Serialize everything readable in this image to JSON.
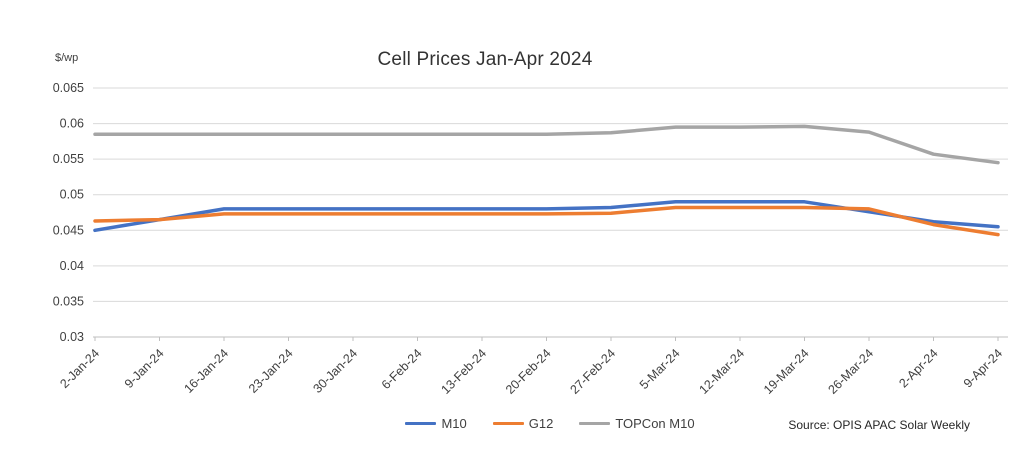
{
  "chart_data": {
    "type": "line",
    "title": "Cell Prices Jan-Apr 2024",
    "ylabel": "$/wp",
    "xlabel": "",
    "ylim": [
      0.03,
      0.065
    ],
    "y_ticks": [
      0.065,
      0.06,
      0.055,
      0.05,
      0.045,
      0.04,
      0.035,
      0.03
    ],
    "y_tick_labels": [
      "0.065",
      "0.06",
      "0.055",
      "0.05",
      "0.045",
      "0.04",
      "0.035",
      "0.03"
    ],
    "grid": "horizontal",
    "legend_position": "bottom-center",
    "x_label_rotation": -45,
    "categories": [
      "2-Jan-24",
      "9-Jan-24",
      "16-Jan-24",
      "23-Jan-24",
      "30-Jan-24",
      "6-Feb-24",
      "13-Feb-24",
      "20-Feb-24",
      "27-Feb-24",
      "5-Mar-24",
      "12-Mar-24",
      "19-Mar-24",
      "26-Mar-24",
      "2-Apr-24",
      "9-Apr-24"
    ],
    "series": [
      {
        "name": "M10",
        "color": "#4472C4",
        "values": [
          0.045,
          0.0465,
          0.048,
          0.048,
          0.048,
          0.048,
          0.048,
          0.048,
          0.0482,
          0.049,
          0.049,
          0.049,
          0.0476,
          0.0462,
          0.0455
        ]
      },
      {
        "name": "G12",
        "color": "#ED7D31",
        "values": [
          0.0463,
          0.0465,
          0.0473,
          0.0473,
          0.0473,
          0.0473,
          0.0473,
          0.0473,
          0.0474,
          0.0482,
          0.0482,
          0.0482,
          0.048,
          0.0458,
          0.0444
        ]
      },
      {
        "name": "TOPCon M10",
        "color": "#A5A5A5",
        "values": [
          0.0585,
          0.0585,
          0.0585,
          0.0585,
          0.0585,
          0.0585,
          0.0585,
          0.0585,
          0.0587,
          0.0595,
          0.0595,
          0.0596,
          0.0588,
          0.0557,
          0.0545
        ]
      }
    ],
    "source": "Source: OPIS APAC Solar Weekly",
    "colors": {
      "gridline": "#D9D9D9",
      "axis_line": "#BFBFBF",
      "label_text": "#404040",
      "title_text": "#333333",
      "background": "#FFFFFF"
    }
  }
}
